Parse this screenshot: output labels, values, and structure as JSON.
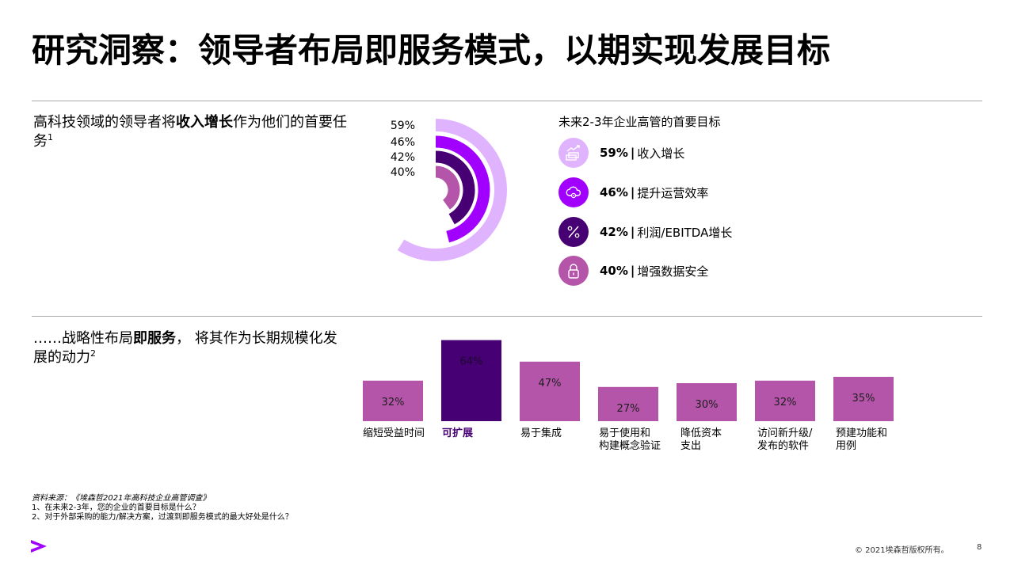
{
  "title": "研究洞察：领导者布局即服务模式，以期实现发展目标",
  "section1": {
    "lead_pre": "高科技领域的领导者将",
    "lead_bold": "收入增长",
    "lead_post": "作为他们的首要任务",
    "lead_sup": "1"
  },
  "section2": {
    "lead_pre": "……战略性布局",
    "lead_bold": "即服务",
    "lead_post": "， 将其作为长期规模化发展的动力",
    "lead_sup": "2"
  },
  "goals": {
    "title": "未来2-3年企业高管的首要目标",
    "separator": "|",
    "items": [
      {
        "pct": "59%",
        "label": "收入增长",
        "icon": "revenue-growth-icon",
        "color": "#e0b3ff"
      },
      {
        "pct": "46%",
        "label": "提升运营效率",
        "icon": "cloud-gear-icon",
        "color": "#a100ff"
      },
      {
        "pct": "42%",
        "label": "利润/EBITDA增长",
        "icon": "percent-icon",
        "color": "#460073"
      },
      {
        "pct": "40%",
        "label": "增强数据安全",
        "icon": "padlock-icon",
        "color": "#b455aa"
      }
    ]
  },
  "chart_data": [
    {
      "type": "pie",
      "categories": [
        "收入增长",
        "提升运营效率",
        "利润/EBITDA增长",
        "增强数据安全"
      ],
      "values": [
        59,
        46,
        42,
        40
      ],
      "labels": [
        "59%",
        "46%",
        "42%",
        "40%"
      ],
      "colors": [
        "#e0b3ff",
        "#a100ff",
        "#460073",
        "#b455aa"
      ]
    },
    {
      "type": "bar",
      "categories": [
        "缩短受益时间",
        "可扩展",
        "易于集成",
        "易于使用和\n构建概念验证",
        "降低资本\n支出",
        "访问新升级/\n发布的软件",
        "预建功能和\n用例"
      ],
      "values": [
        32,
        64,
        47,
        27,
        30,
        32,
        35
      ],
      "labels": [
        "32%",
        "64%",
        "47%",
        "27%",
        "30%",
        "32%",
        "35%"
      ],
      "highlight": 1,
      "colors": {
        "bar": "#b455aa",
        "highlight": "#460073"
      }
    }
  ],
  "footnotes": {
    "source": "资料来源：《埃森哲2021年高科技企业高管调查》",
    "note1": "1、在未来2-3年，您的企业的首要目标是什么？",
    "note2": "2、对于外部采购的能力/解决方案，过渡到即服务模式的最大好处是什么？"
  },
  "footer": {
    "copyright": "© 2021埃森哲版权所有。",
    "page": "8",
    "logo_icon": "accenture-arrow-icon",
    "logo_color": "#a100ff"
  }
}
